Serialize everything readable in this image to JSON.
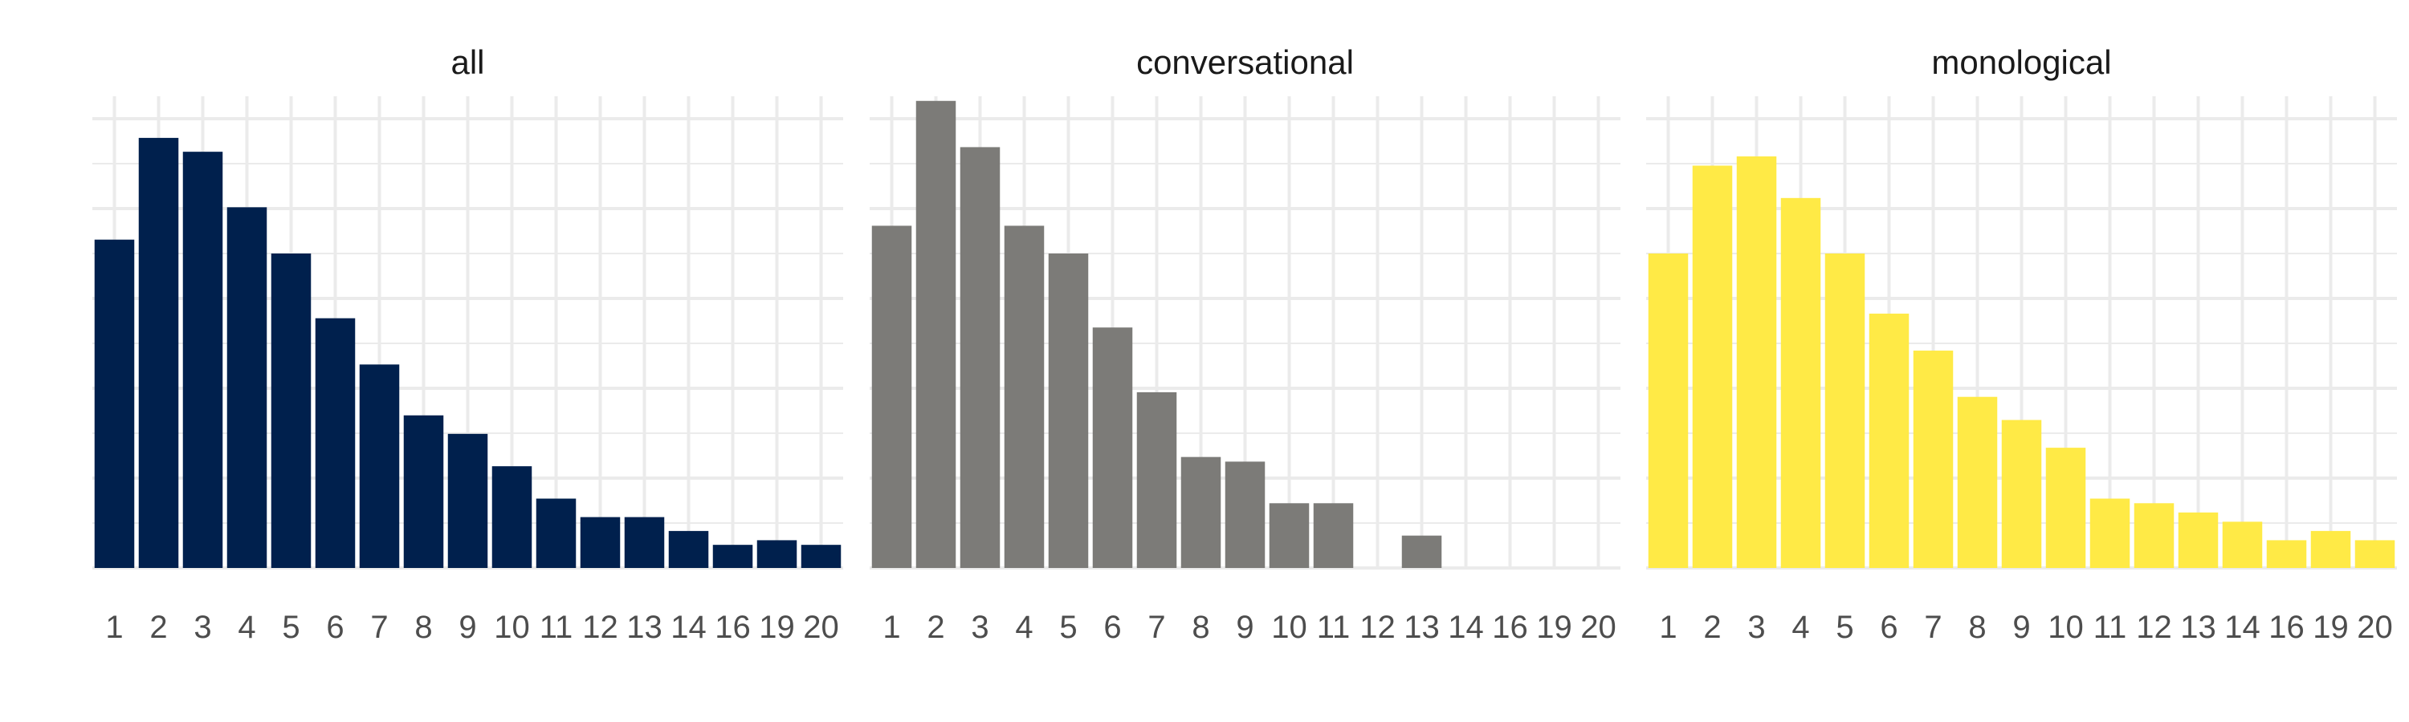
{
  "chart_data": [
    {
      "type": "bar",
      "title": "all",
      "color": "#00204D",
      "categories": [
        "1",
        "2",
        "3",
        "4",
        "5",
        "6",
        "7",
        "8",
        "9",
        "10",
        "11",
        "12",
        "13",
        "14",
        "16",
        "19",
        "20"
      ],
      "values": [
        71,
        93,
        90,
        78,
        68,
        54,
        44,
        33,
        29,
        22,
        15,
        11,
        11,
        8,
        5,
        6,
        5
      ],
      "ylim": [
        0,
        102
      ],
      "grid": true,
      "show_y_ticks": false
    },
    {
      "type": "bar",
      "title": "conversational",
      "color": "#7C7B78",
      "categories": [
        "1",
        "2",
        "3",
        "4",
        "5",
        "6",
        "7",
        "8",
        "9",
        "10",
        "11",
        "12",
        "13",
        "14",
        "16",
        "19",
        "20"
      ],
      "values": [
        74,
        101,
        91,
        74,
        68,
        52,
        38,
        24,
        23,
        14,
        14,
        0,
        7,
        0,
        0,
        0,
        0
      ],
      "ylim": [
        0,
        102
      ],
      "grid": true,
      "show_y_ticks": false
    },
    {
      "type": "bar",
      "title": "monological",
      "color": "#FFEA46",
      "categories": [
        "1",
        "2",
        "3",
        "4",
        "5",
        "6",
        "7",
        "8",
        "9",
        "10",
        "11",
        "12",
        "13",
        "14",
        "16",
        "19",
        "20"
      ],
      "values": [
        68,
        87,
        89,
        80,
        68,
        55,
        47,
        37,
        32,
        26,
        15,
        14,
        12,
        10,
        6,
        8,
        6
      ],
      "ylim": [
        0,
        102
      ],
      "grid": true,
      "show_y_ticks": false
    }
  ]
}
